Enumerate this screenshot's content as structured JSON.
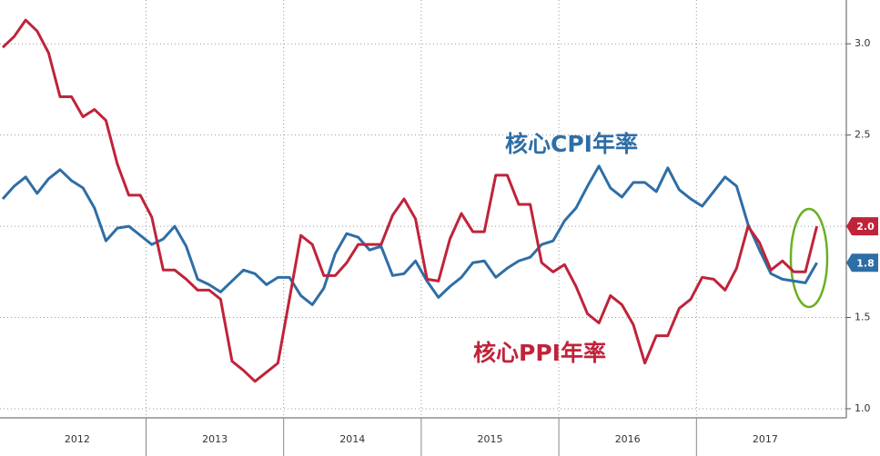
{
  "chart_data": {
    "type": "line",
    "categories": [
      null,
      null,
      null,
      null,
      null,
      null,
      null,
      "2012",
      null,
      null,
      null,
      null,
      null,
      null,
      null,
      null,
      null,
      null,
      null,
      "2013",
      null,
      null,
      null,
      null,
      null,
      null,
      null,
      null,
      null,
      null,
      null,
      "2014",
      null,
      null,
      null,
      null,
      null,
      null,
      null,
      null,
      null,
      null,
      null,
      "2015",
      null,
      null,
      null,
      null,
      null,
      null,
      null,
      null,
      null,
      null,
      null,
      "2016",
      null,
      null,
      null,
      null,
      null,
      null,
      null,
      null,
      null,
      null,
      null,
      "2017",
      null,
      null,
      null,
      null
    ],
    "series": [
      {
        "name": "核心CPI年率",
        "color": "#2e6ea6",
        "values": [
          2.15,
          2.22,
          2.27,
          2.18,
          2.26,
          2.31,
          2.25,
          2.21,
          2.1,
          1.92,
          1.99,
          2.0,
          1.95,
          1.9,
          1.93,
          2.0,
          1.89,
          1.71,
          1.68,
          1.64,
          1.7,
          1.76,
          1.74,
          1.68,
          1.72,
          1.72,
          1.62,
          1.57,
          1.66,
          1.85,
          1.96,
          1.94,
          1.87,
          1.89,
          1.73,
          1.74,
          1.81,
          1.7,
          1.61,
          1.67,
          1.72,
          1.8,
          1.81,
          1.72,
          1.77,
          1.81,
          1.83,
          1.9,
          1.92,
          2.03,
          2.1,
          2.22,
          2.33,
          2.21,
          2.16,
          2.24,
          2.24,
          2.19,
          2.32,
          2.2,
          2.15,
          2.11,
          2.19,
          2.27,
          2.22,
          2.01,
          1.87,
          1.74,
          1.71,
          1.7,
          1.69,
          1.8
        ],
        "value_labels": [
          null,
          null,
          null,
          null,
          null,
          null,
          null,
          null,
          null,
          null,
          null,
          null,
          null,
          null,
          null,
          null,
          null,
          null,
          null,
          null,
          null,
          null,
          null,
          null,
          null,
          null,
          null,
          null,
          null,
          null,
          null,
          null,
          null,
          null,
          null,
          null,
          null,
          null,
          null,
          null,
          null,
          null,
          null,
          null,
          null,
          null,
          null,
          null,
          null,
          null,
          null,
          null,
          null,
          null,
          null,
          null,
          null,
          null,
          null,
          null,
          null,
          null,
          null,
          null,
          null,
          null,
          null,
          null,
          null,
          null,
          null,
          "1.8"
        ]
      },
      {
        "name": "核心PPI年率",
        "color": "#c0233a",
        "values": [
          2.98,
          3.04,
          3.13,
          3.07,
          2.95,
          2.71,
          2.71,
          2.6,
          2.64,
          2.58,
          2.34,
          2.17,
          2.17,
          2.05,
          1.76,
          1.76,
          1.71,
          1.65,
          1.65,
          1.6,
          1.26,
          1.21,
          1.15,
          1.2,
          1.25,
          1.6,
          1.95,
          1.9,
          1.73,
          1.73,
          1.8,
          1.9,
          1.9,
          1.9,
          2.06,
          2.15,
          2.04,
          1.71,
          1.7,
          1.93,
          2.07,
          1.97,
          1.97,
          2.28,
          2.28,
          2.12,
          2.12,
          1.8,
          1.75,
          1.79,
          1.67,
          1.52,
          1.47,
          1.62,
          1.57,
          1.46,
          1.25,
          1.4,
          1.4,
          1.55,
          1.6,
          1.72,
          1.71,
          1.65,
          1.77,
          2.0,
          1.91,
          1.76,
          1.81,
          1.75,
          1.75,
          2.0
        ],
        "value_labels": [
          null,
          null,
          null,
          null,
          null,
          null,
          null,
          null,
          null,
          null,
          null,
          null,
          null,
          null,
          null,
          null,
          null,
          null,
          null,
          null,
          null,
          null,
          null,
          null,
          null,
          null,
          null,
          null,
          null,
          null,
          null,
          null,
          null,
          null,
          null,
          null,
          null,
          null,
          null,
          null,
          null,
          null,
          null,
          null,
          null,
          null,
          null,
          null,
          null,
          null,
          null,
          null,
          null,
          null,
          null,
          null,
          null,
          null,
          null,
          null,
          null,
          null,
          null,
          null,
          null,
          null,
          null,
          null,
          null,
          null,
          null,
          "2.0"
        ]
      }
    ],
    "ylim": [
      0.95,
      3.24
    ],
    "yticks": [
      {
        "value": 1,
        "label": "1.0"
      },
      1.5,
      {
        "value": 2,
        "label": "2.0"
      },
      2.5,
      {
        "value": 3,
        "label": "3.0"
      }
    ],
    "grid": true
  }
}
